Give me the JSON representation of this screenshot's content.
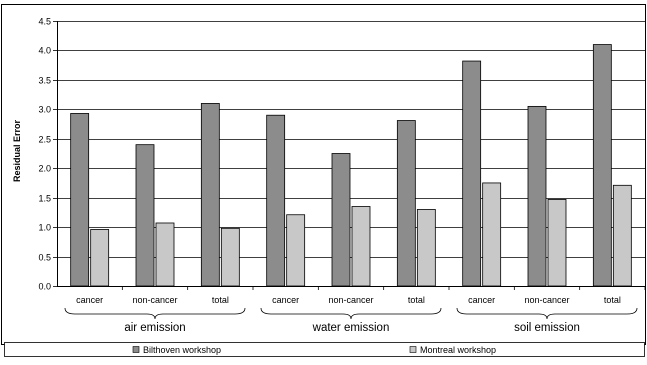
{
  "chart_data": {
    "type": "bar",
    "title": "",
    "xlabel": "",
    "ylabel": "Residual Error",
    "ylim": [
      0,
      4.5
    ],
    "yticks": [
      "0.0",
      "0.5",
      "1.0",
      "1.5",
      "2.0",
      "2.5",
      "3.0",
      "3.5",
      "4.0",
      "4.5"
    ],
    "groups": [
      "air emission",
      "water emission",
      "soil emission"
    ],
    "categories": [
      "cancer",
      "non-cancer",
      "total",
      "cancer",
      "non-cancer",
      "total",
      "cancer",
      "non-cancer",
      "total"
    ],
    "series": [
      {
        "name": "Bilthoven workshop",
        "color": "#8c8c8c",
        "values": [
          2.93,
          2.4,
          3.1,
          2.9,
          2.25,
          2.81,
          3.82,
          3.05,
          4.1
        ]
      },
      {
        "name": "Montreal workshop",
        "color": "#c8c8c8",
        "values": [
          0.96,
          1.07,
          0.98,
          1.21,
          1.35,
          1.3,
          1.75,
          1.47,
          1.71
        ]
      }
    ],
    "grid": true,
    "legend_position": "bottom"
  }
}
